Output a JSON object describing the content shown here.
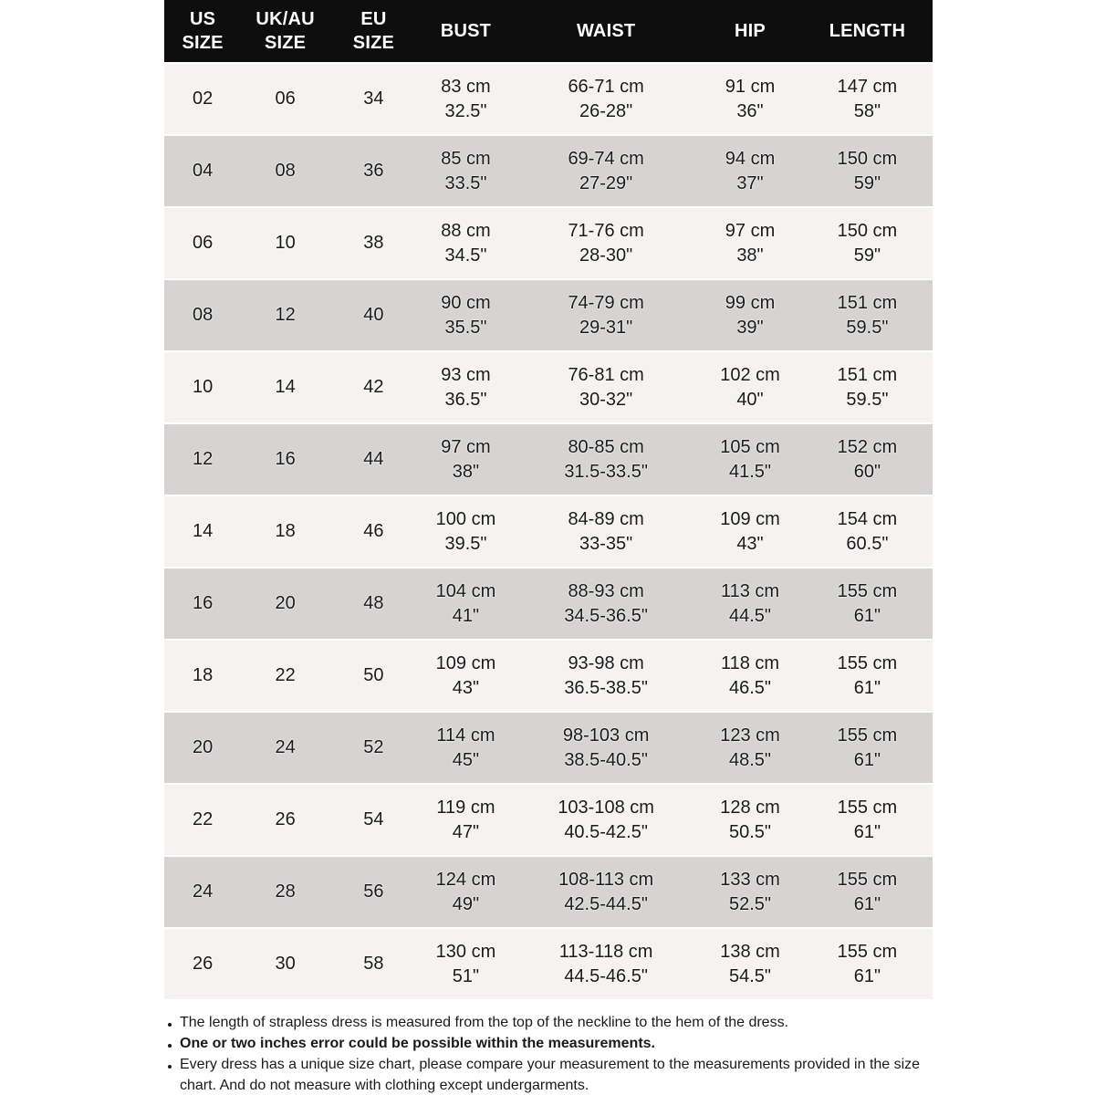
{
  "table": {
    "header_cells": [
      "US\nSIZE",
      "UK/AU\nSIZE",
      "EU\nSIZE",
      "BUST",
      "WAIST",
      "HIP",
      "LENGTH"
    ]
  },
  "chart_data": {
    "type": "table",
    "title": "Dress size chart",
    "columns": [
      "US SIZE",
      "UK/AU SIZE",
      "EU SIZE",
      "BUST",
      "WAIST",
      "HIP",
      "LENGTH"
    ],
    "rows": [
      [
        "02",
        "06",
        "34",
        "83 cm\n32.5\"",
        "66-71 cm\n26-28\"",
        "91 cm\n36\"",
        "147 cm\n58\""
      ],
      [
        "04",
        "08",
        "36",
        "85 cm\n33.5\"",
        "69-74 cm\n27-29\"",
        "94 cm\n37\"",
        "150 cm\n59\""
      ],
      [
        "06",
        "10",
        "38",
        "88 cm\n34.5\"",
        "71-76 cm\n28-30\"",
        "97 cm\n38\"",
        "150 cm\n59\""
      ],
      [
        "08",
        "12",
        "40",
        "90 cm\n35.5\"",
        "74-79 cm\n29-31\"",
        "99 cm\n39\"",
        "151 cm\n59.5\""
      ],
      [
        "10",
        "14",
        "42",
        "93 cm\n36.5\"",
        "76-81 cm\n30-32\"",
        "102 cm\n40\"",
        "151 cm\n59.5\""
      ],
      [
        "12",
        "16",
        "44",
        "97 cm\n38\"",
        "80-85 cm\n31.5-33.5\"",
        "105 cm\n41.5\"",
        "152 cm\n60\""
      ],
      [
        "14",
        "18",
        "46",
        "100 cm\n39.5\"",
        "84-89 cm\n33-35\"",
        "109 cm\n43\"",
        "154 cm\n60.5\""
      ],
      [
        "16",
        "20",
        "48",
        "104 cm\n41\"",
        "88-93 cm\n34.5-36.5\"",
        "113 cm\n44.5\"",
        "155 cm\n61\""
      ],
      [
        "18",
        "22",
        "50",
        "109 cm\n43\"",
        "93-98 cm\n36.5-38.5\"",
        "118 cm\n46.5\"",
        "155 cm\n61\""
      ],
      [
        "20",
        "24",
        "52",
        "114 cm\n45\"",
        "98-103 cm\n38.5-40.5\"",
        "123 cm\n48.5\"",
        "155 cm\n61\""
      ],
      [
        "22",
        "26",
        "54",
        "119 cm\n47\"",
        "103-108 cm\n40.5-42.5\"",
        "128 cm\n50.5\"",
        "155 cm\n61\""
      ],
      [
        "24",
        "28",
        "56",
        "124 cm\n49\"",
        "108-113 cm\n42.5-44.5\"",
        "133 cm\n52.5\"",
        "155 cm\n61\""
      ],
      [
        "26",
        "30",
        "58",
        "130 cm\n51\"",
        "113-118 cm\n44.5-46.5\"",
        "138 cm\n54.5\"",
        "155 cm\n61\""
      ]
    ]
  },
  "notes": [
    {
      "text": "The length of strapless dress is measured from the top of the neckline to the hem of the dress.",
      "bold": false
    },
    {
      "text": "One or two inches error could be possible within the measurements.",
      "bold": true
    },
    {
      "text": "Every dress has a unique size chart, please compare your measurement to the measurements provided in the size chart. And do not measure with clothing except undergarments.",
      "bold": false
    }
  ],
  "colors": {
    "page_bg": "#ffffff",
    "header_bg": "#0e0e0e",
    "header_text": "#ffffff",
    "row_light": "#f5f3f0",
    "row_dark": "#d5d4d2",
    "text": "#1a1a1a"
  }
}
